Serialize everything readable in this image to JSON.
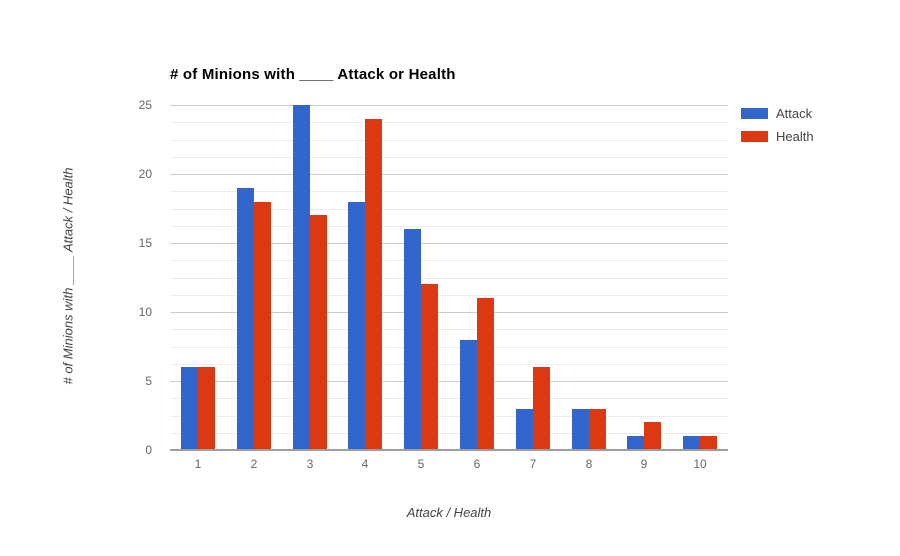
{
  "chart_data": {
    "type": "bar",
    "title": "# of Minions with ____ Attack or Health",
    "categories": [
      "1",
      "2",
      "3",
      "4",
      "5",
      "6",
      "7",
      "8",
      "9",
      "10"
    ],
    "series": [
      {
        "name": "Attack",
        "color": "#3366cc",
        "values": [
          6,
          19,
          25,
          18,
          16,
          8,
          3,
          3,
          1,
          1
        ]
      },
      {
        "name": "Health",
        "color": "#dc3912",
        "values": [
          6,
          18,
          17,
          24,
          12,
          11,
          6,
          3,
          2,
          1
        ]
      }
    ],
    "xlabel": "Attack / Health",
    "ylabel": "# of Minions with ____ Attack / Health",
    "ylim": [
      0,
      25
    ],
    "yticks": [
      0,
      5,
      10,
      15,
      20,
      25
    ],
    "minor_grid_step": 1.25,
    "grid": true,
    "legend_position": "top-right",
    "axis_line_color": "#9e9e9e",
    "major_grid_color": "#cccccc",
    "minor_grid_color": "#ededed",
    "tick_label_color": "#666666",
    "axis_title_color": "#444444",
    "title_color": "#000000"
  }
}
